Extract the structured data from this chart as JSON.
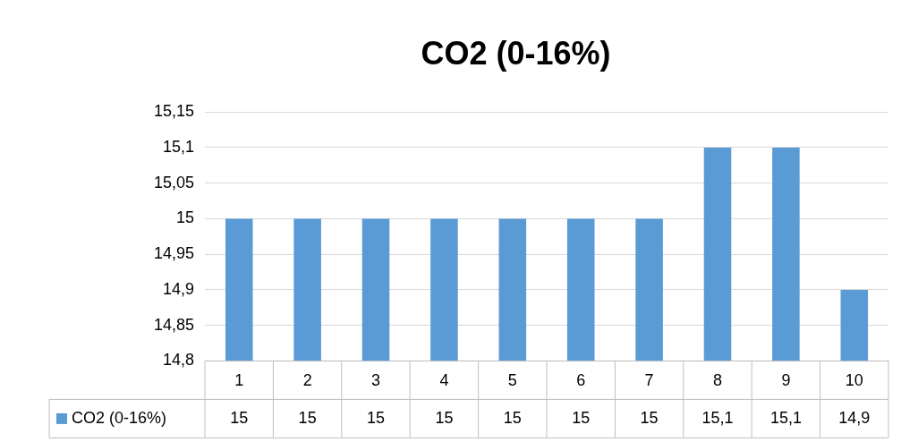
{
  "chart_data": {
    "type": "bar",
    "title": "CO2 (0-16%)",
    "categories": [
      "1",
      "2",
      "3",
      "4",
      "5",
      "6",
      "7",
      "8",
      "9",
      "10"
    ],
    "series": [
      {
        "name": "CO2 (0-16%)",
        "color": "#5b9bd5",
        "values": [
          15,
          15,
          15,
          15,
          15,
          15,
          15,
          15.1,
          15.1,
          14.9
        ],
        "value_labels": [
          "15",
          "15",
          "15",
          "15",
          "15",
          "15",
          "15",
          "15,1",
          "15,1",
          "14,9"
        ]
      }
    ],
    "ylim": [
      14.8,
      15.15
    ],
    "yticks": [
      {
        "value": 14.8,
        "label": "14,8"
      },
      {
        "value": 14.85,
        "label": "14,85"
      },
      {
        "value": 14.9,
        "label": "14,9"
      },
      {
        "value": 14.95,
        "label": "14,95"
      },
      15,
      {
        "value": 15.05,
        "label": "15,05"
      },
      {
        "value": 15.1,
        "label": "15,1"
      },
      {
        "value": 15.15,
        "label": "15,15"
      }
    ],
    "grid": "y",
    "legend": "bottom left"
  }
}
